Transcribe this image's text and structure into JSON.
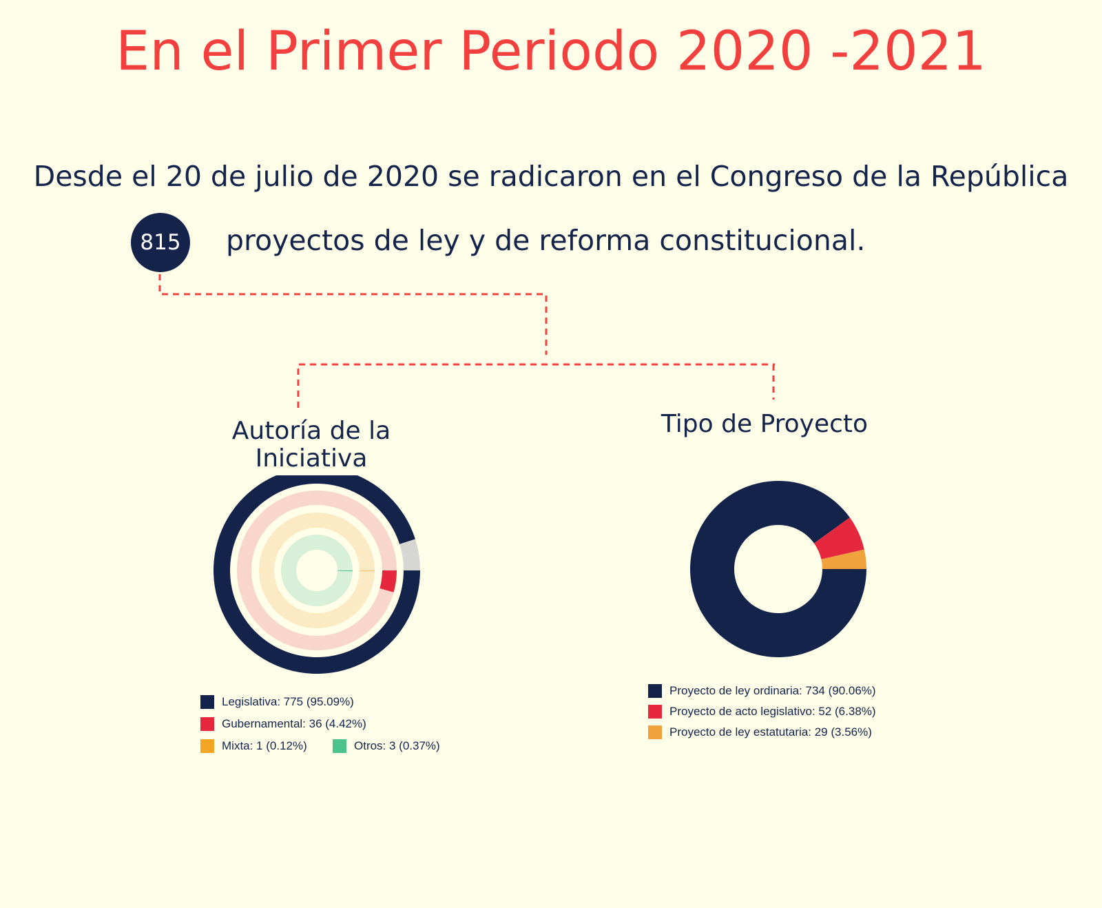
{
  "header": {
    "title": "En el Primer Periodo 2020 -2021",
    "subtitle_line1": "Desde el 20 de julio de 2020 se radicaron en el Congreso de la República",
    "total_badge": "815",
    "subtitle_line2": "proyectos de ley y de reforma constitucional."
  },
  "colors": {
    "title": "#f2403f",
    "text": "#14234a",
    "background": "#fefee9",
    "connector": "#f2403f"
  },
  "chart_data": [
    {
      "type": "radial-bar",
      "title": "Autoría de la Iniciativa",
      "title_lines": [
        "Autoría de la",
        "Iniciativa"
      ],
      "series": [
        {
          "name": "Legislativa",
          "value": 775,
          "percent": 95.09,
          "color": "#14234a",
          "track": "#d6d6d2",
          "legend": "Legislativa: 775 (95.09%)"
        },
        {
          "name": "Gubernamental",
          "value": 36,
          "percent": 4.42,
          "color": "#e6283f",
          "track": "#f9d6cc",
          "legend": "Gubernamental: 36 (4.42%)"
        },
        {
          "name": "Mixta",
          "value": 1,
          "percent": 0.12,
          "color": "#f2a623",
          "track": "#fbeac4",
          "legend": "Mixta: 1 (0.12%)"
        },
        {
          "name": "Otros",
          "value": 3,
          "percent": 0.37,
          "color": "#4cc38a",
          "track": "#d9f0d8",
          "legend": "Otros: 3 (0.37%)"
        }
      ]
    },
    {
      "type": "pie",
      "title": "Tipo de Proyecto",
      "donut": true,
      "series": [
        {
          "name": "Proyecto de ley ordinaria",
          "value": 734,
          "percent": 90.06,
          "color": "#14234a",
          "legend": "Proyecto de ley ordinaria: 734 (90.06%)"
        },
        {
          "name": "Proyecto de acto legislativo",
          "value": 52,
          "percent": 6.38,
          "color": "#e6283f",
          "legend": "Proyecto de acto legislativo: 52 (6.38%)"
        },
        {
          "name": "Proyecto de ley estatutaria",
          "value": 29,
          "percent": 3.56,
          "color": "#f0a23c",
          "legend": "Proyecto de ley estatutaria: 29 (3.56%)"
        }
      ]
    }
  ]
}
